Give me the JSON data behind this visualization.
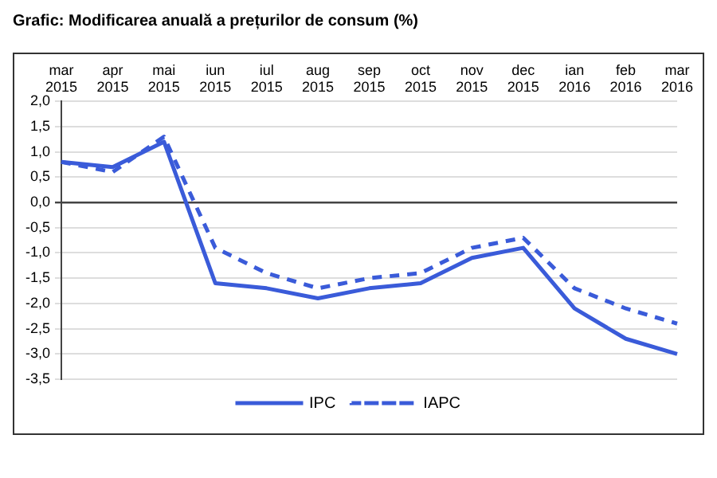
{
  "chart_data": {
    "type": "line",
    "title": "Grafic: Modificarea anuală a prețurilor de consum (%)",
    "categories": [
      "mar 2015",
      "apr 2015",
      "mai 2015",
      "iun 2015",
      "iul 2015",
      "aug 2015",
      "sep 2015",
      "oct 2015",
      "nov 2015",
      "dec 2015",
      "ian 2016",
      "feb 2016",
      "mar 2016"
    ],
    "series": [
      {
        "name": "IPC",
        "color": "#3a5bd9",
        "line_style": "solid",
        "values": [
          0.8,
          0.7,
          1.2,
          -1.6,
          -1.7,
          -1.9,
          -1.7,
          -1.6,
          -1.1,
          -0.9,
          -2.1,
          -2.7,
          -3.0
        ]
      },
      {
        "name": "IAPC",
        "color": "#3a5bd9",
        "line_style": "dashed",
        "values": [
          0.8,
          0.6,
          1.3,
          -0.9,
          -1.4,
          -1.7,
          -1.5,
          -1.4,
          -0.9,
          -0.7,
          -1.7,
          -2.1,
          -2.4
        ]
      }
    ],
    "ylim": [
      -3.5,
      2.0
    ],
    "yticks": [
      {
        "value": -3.5,
        "label": "-3,5"
      },
      {
        "value": -3.0,
        "label": "-3,0"
      },
      {
        "value": -2.5,
        "label": "-2,5"
      },
      {
        "value": -2.0,
        "label": "-2,0"
      },
      {
        "value": -1.5,
        "label": "-1,5"
      },
      {
        "value": -1.0,
        "label": "-1,0"
      },
      {
        "value": -0.5,
        "label": "-0,5"
      },
      {
        "value": 0.0,
        "label": "0,0"
      },
      {
        "value": 0.5,
        "label": "0,5"
      },
      {
        "value": 1.0,
        "label": "1,0"
      },
      {
        "value": 1.5,
        "label": "1,5"
      },
      {
        "value": 2.0,
        "label": "2,0"
      }
    ],
    "grid": "y",
    "legend": "bottom",
    "marker": "none"
  }
}
